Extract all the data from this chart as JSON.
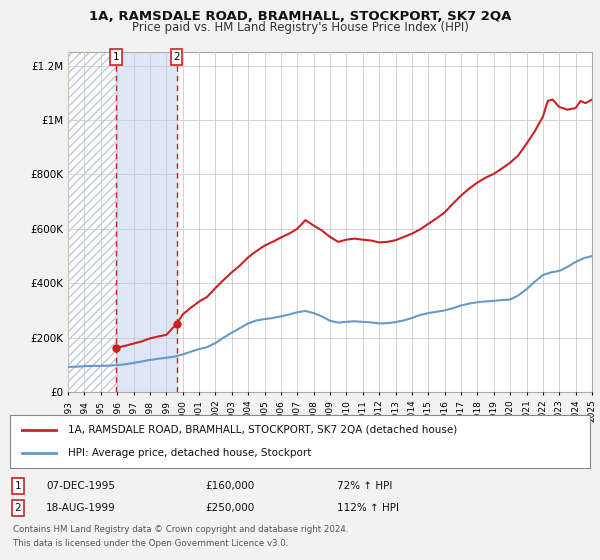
{
  "title": "1A, RAMSDALE ROAD, BRAMHALL, STOCKPORT, SK7 2QA",
  "subtitle": "Price paid vs. HM Land Registry's House Price Index (HPI)",
  "sale1_x": 1995.92,
  "sale1_price": 160000,
  "sale1_label": "1",
  "sale1_display_date": "07-DEC-1995",
  "sale1_pct": "72% ↑ HPI",
  "sale2_x": 1999.63,
  "sale2_price": 250000,
  "sale2_label": "2",
  "sale2_display_date": "18-AUG-1999",
  "sale2_pct": "112% ↑ HPI",
  "legend_line1": "1A, RAMSDALE ROAD, BRAMHALL, STOCKPORT, SK7 2QA (detached house)",
  "legend_line2": "HPI: Average price, detached house, Stockport",
  "footnote1": "Contains HM Land Registry data © Crown copyright and database right 2024.",
  "footnote2": "This data is licensed under the Open Government Licence v3.0.",
  "hpi_color": "#6699cc",
  "price_color": "#cc2222",
  "bg_color": "#f2f2f2",
  "plot_bg": "#ffffff",
  "shade_color": "#dce6f5",
  "hatch_color": "#c0c8d8",
  "grid_color": "#cccccc",
  "ylim": [
    0,
    1250000
  ],
  "yticks": [
    0,
    200000,
    400000,
    600000,
    800000,
    1000000,
    1200000
  ],
  "ytick_labels": [
    "£0",
    "£200K",
    "£400K",
    "£600K",
    "£800K",
    "£1M",
    "£1.2M"
  ],
  "xstart": 1993,
  "xend": 2025,
  "hpi_x": [
    1993.0,
    1993.5,
    1994.0,
    1994.5,
    1995.0,
    1995.5,
    1996.0,
    1996.5,
    1997.0,
    1997.5,
    1998.0,
    1998.5,
    1999.0,
    1999.5,
    2000.0,
    2000.5,
    2001.0,
    2001.5,
    2002.0,
    2002.5,
    2003.0,
    2003.5,
    2004.0,
    2004.5,
    2005.0,
    2005.5,
    2006.0,
    2006.5,
    2007.0,
    2007.5,
    2008.0,
    2008.5,
    2009.0,
    2009.5,
    2010.0,
    2010.5,
    2011.0,
    2011.5,
    2012.0,
    2012.5,
    2013.0,
    2013.5,
    2014.0,
    2014.5,
    2015.0,
    2015.5,
    2016.0,
    2016.5,
    2017.0,
    2017.5,
    2018.0,
    2018.5,
    2019.0,
    2019.5,
    2020.0,
    2020.5,
    2021.0,
    2021.5,
    2022.0,
    2022.5,
    2023.0,
    2023.5,
    2024.0,
    2024.5,
    2025.0
  ],
  "hpi_y": [
    92000,
    93000,
    95000,
    96000,
    96000,
    97000,
    99000,
    102000,
    107000,
    112000,
    118000,
    122000,
    126000,
    130000,
    138000,
    148000,
    158000,
    165000,
    180000,
    200000,
    218000,
    235000,
    252000,
    263000,
    268000,
    272000,
    278000,
    285000,
    293000,
    298000,
    290000,
    278000,
    262000,
    255000,
    258000,
    260000,
    258000,
    256000,
    252000,
    253000,
    257000,
    263000,
    272000,
    283000,
    290000,
    295000,
    300000,
    308000,
    318000,
    325000,
    330000,
    333000,
    335000,
    338000,
    340000,
    355000,
    378000,
    405000,
    430000,
    440000,
    445000,
    460000,
    478000,
    492000,
    500000
  ],
  "red_x": [
    1995.92,
    1996.0,
    1996.5,
    1997.0,
    1997.5,
    1998.0,
    1998.5,
    1999.0,
    1999.63,
    2000.0,
    2000.5,
    2001.0,
    2001.5,
    2002.0,
    2002.5,
    2003.0,
    2003.5,
    2004.0,
    2004.5,
    2005.0,
    2005.5,
    2006.0,
    2006.5,
    2007.0,
    2007.5,
    2008.0,
    2008.5,
    2009.0,
    2009.5,
    2010.0,
    2010.5,
    2011.0,
    2011.5,
    2012.0,
    2012.5,
    2013.0,
    2013.5,
    2014.0,
    2014.5,
    2015.0,
    2015.5,
    2016.0,
    2016.5,
    2017.0,
    2017.5,
    2018.0,
    2018.5,
    2019.0,
    2019.5,
    2020.0,
    2020.5,
    2021.0,
    2021.5,
    2022.0,
    2022.3,
    2022.6,
    2023.0,
    2023.5,
    2024.0,
    2024.3,
    2024.6,
    2025.0
  ],
  "red_y": [
    160000,
    163000,
    170000,
    178000,
    186000,
    197000,
    204000,
    210000,
    250000,
    285000,
    310000,
    332000,
    350000,
    382000,
    412000,
    440000,
    465000,
    495000,
    518000,
    538000,
    552000,
    568000,
    582000,
    600000,
    632000,
    612000,
    594000,
    570000,
    552000,
    560000,
    564000,
    560000,
    557000,
    550000,
    552000,
    558000,
    570000,
    582000,
    598000,
    618000,
    638000,
    660000,
    692000,
    722000,
    748000,
    770000,
    788000,
    802000,
    822000,
    843000,
    870000,
    913000,
    958000,
    1012000,
    1070000,
    1075000,
    1048000,
    1038000,
    1044000,
    1070000,
    1062000,
    1075000
  ]
}
